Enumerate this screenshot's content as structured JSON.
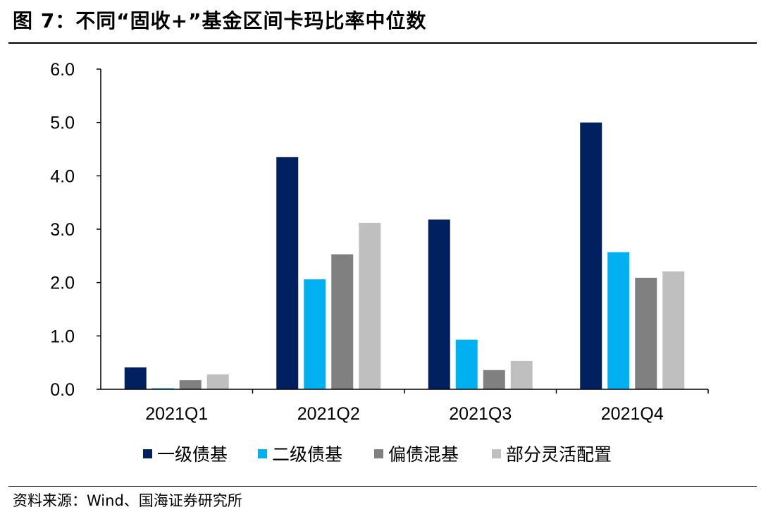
{
  "title": "图 7：不同“固收+”基金区间卡玛比率中位数",
  "source": "资料来源：Wind、国海证券研究所",
  "chart_data": {
    "type": "bar",
    "categories": [
      "2021Q1",
      "2021Q2",
      "2021Q3",
      "2021Q4"
    ],
    "series": [
      {
        "name": "一级债基",
        "color": "#002060",
        "values": [
          0.41,
          4.35,
          3.18,
          5.0
        ]
      },
      {
        "name": "二级债基",
        "color": "#00B0F0",
        "values": [
          0.02,
          2.06,
          0.93,
          2.57
        ]
      },
      {
        "name": "偏债混基",
        "color": "#808080",
        "values": [
          0.17,
          2.53,
          0.36,
          2.09
        ]
      },
      {
        "name": "部分灵活配置",
        "color": "#BFBFBF",
        "values": [
          0.28,
          3.12,
          0.53,
          2.21
        ]
      }
    ],
    "yticks": [
      "0.0",
      "1.0",
      "2.0",
      "3.0",
      "4.0",
      "5.0",
      "6.0"
    ],
    "ylim": [
      0,
      6
    ],
    "legend_position": "bottom",
    "grid": false
  }
}
